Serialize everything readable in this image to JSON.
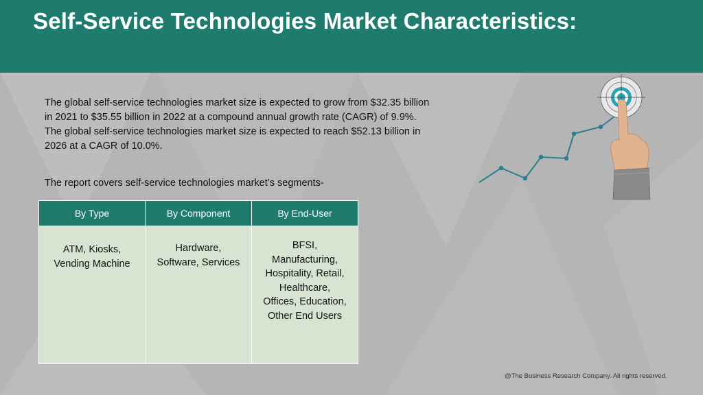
{
  "title": "Self-Service Technologies Market Characteristics:",
  "intro_lines": [
    "The global self-service technologies market size is expected to grow from $32.35 billion",
    "in 2021 to $35.55 billion in 2022 at a compound annual growth rate (CAGR) of 9.9%.",
    "The global self-service technologies market size is expected to reach $52.13 billion in",
    "2026 at a CAGR of 10.0%."
  ],
  "segments_label": "The report covers self-service technologies market’s segments-",
  "table": {
    "headers": [
      "By Type",
      "By Component",
      "By End-User"
    ],
    "cells": [
      "ATM, Kiosks,\nVending Machine",
      "Hardware,\nSoftware, Services",
      "BFSI,\nManufacturing,\nHospitality, Retail,\nHealthcare,\nOffices, Education,\nOther End Users"
    ]
  },
  "footer": "@The Business Research Company. All rights reserved.",
  "colors": {
    "header_bg": "#1e7b6e",
    "table_header_bg": "#1e7b6e",
    "table_cell_bg": "#d8e4d2",
    "page_bg": "#b5b5b5",
    "trend_line": "#2a7f8f"
  },
  "icons": {
    "graphic": "hand-touching-target-with-rising-trend-line"
  }
}
